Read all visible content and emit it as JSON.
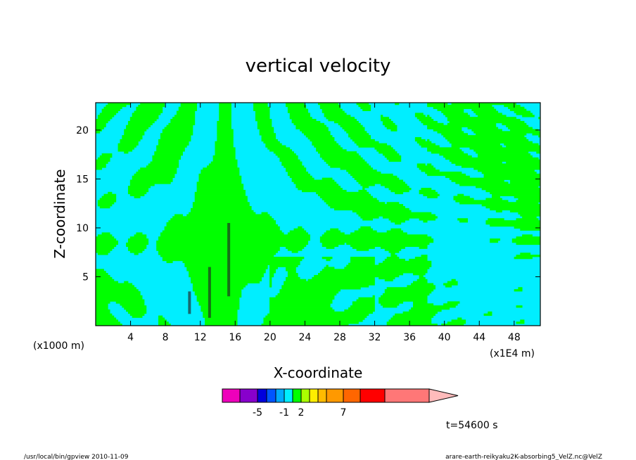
{
  "chart_data": {
    "type": "heatmap",
    "title": "vertical velocity",
    "xlabel": "X-coordinate",
    "ylabel": "Z-coordinate",
    "x_unit_left": "(x1000 m)",
    "x_unit_right": "(x1E4 m)",
    "xlim": [
      0,
      51
    ],
    "ylim": [
      0,
      22.8
    ],
    "x_ticks": [
      "4",
      "8",
      "12",
      "16",
      "20",
      "24",
      "28",
      "32",
      "36",
      "40",
      "44",
      "48"
    ],
    "x_tick_values": [
      4,
      8,
      12,
      16,
      20,
      24,
      28,
      32,
      36,
      40,
      44,
      48
    ],
    "y_ticks": [
      "5",
      "10",
      "15",
      "20"
    ],
    "y_tick_values": [
      5,
      10,
      15,
      20
    ],
    "field_colors": {
      "positive": "#00ff00",
      "negative": "#00eeff"
    },
    "colorbar": {
      "colors": [
        "#ee00bb",
        "#8800cc",
        "#0000dd",
        "#0055ff",
        "#00aaff",
        "#00eeff",
        "#00ff00",
        "#aaff00",
        "#ffee00",
        "#ffbb00",
        "#ff9900",
        "#ff6600",
        "#ff0000",
        "#ff7777",
        "#ffbbbb"
      ],
      "labels": [
        "-5",
        "-1",
        "2",
        "7"
      ],
      "label_boundary_index": [
        2,
        5,
        7,
        11
      ]
    },
    "time_label": "t=54600 s"
  },
  "footer": {
    "left": "/usr/local/bin/gpview  2010-11-09",
    "right": "arare-earth-reikyaku2K-absorbing5_VelZ.nc@VelZ"
  }
}
